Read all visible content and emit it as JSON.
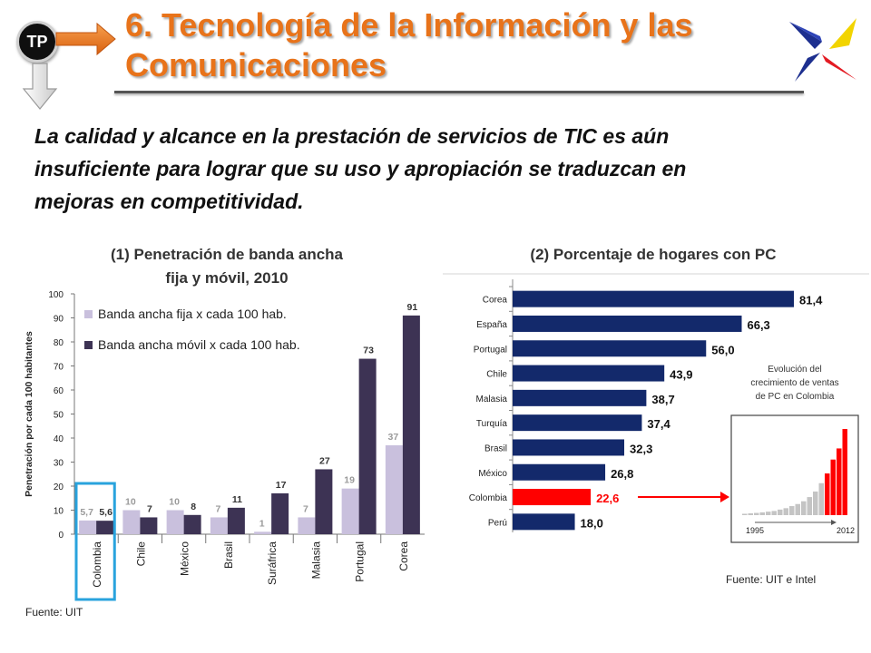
{
  "header": {
    "badge": "TP",
    "title_line1": "6. Tecnología de la Información y las",
    "title_line2": "Comunicaciones"
  },
  "subtitle": {
    "line1": "La calidad y alcance en la prestación de servicios de TIC es aún",
    "line2": "insuficiente para lograr que su uso y apropiación se traduzcan en",
    "line3": "mejoras en competitividad."
  },
  "colors": {
    "title": "#e8731a",
    "fija": "#c9c0dd",
    "movil": "#3d3354",
    "hbar": "#13296b",
    "highlight": "#ff0000",
    "box": "#29a3dd"
  },
  "chart_data": [
    {
      "type": "bar",
      "title_line1": "(1) Penetración de banda ancha",
      "title_line2": "fija y móvil, 2010",
      "ylabel": "Penetración por cada 100 habitantes",
      "ylim": [
        0,
        100
      ],
      "yticks": [
        0,
        10,
        20,
        30,
        40,
        50,
        60,
        70,
        80,
        90,
        100
      ],
      "categories": [
        "Colombia",
        "Chile",
        "México",
        "Brasil",
        "Suráfrica",
        "Malasia",
        "Portugal",
        "Corea"
      ],
      "series": [
        {
          "name": "Banda ancha fija x cada 100 hab.",
          "values": [
            5.7,
            10,
            10,
            7,
            1,
            7,
            19,
            37
          ],
          "labels": [
            "5,7",
            "10",
            "10",
            "7",
            "1",
            "7",
            "19",
            "37"
          ]
        },
        {
          "name": "Banda ancha móvil x cada 100 hab.",
          "values": [
            5.6,
            7,
            8,
            11,
            17,
            27,
            73,
            91
          ],
          "labels": [
            "5,6",
            "7",
            "8",
            "11",
            "17",
            "27",
            "73",
            "91"
          ]
        }
      ],
      "highlight_category": "Colombia",
      "source": "Fuente: UIT"
    },
    {
      "type": "bar",
      "orientation": "horizontal",
      "title": "(2) Porcentaje de hogares con PC",
      "categories": [
        "Corea",
        "España",
        "Portugal",
        "Chile",
        "Malasia",
        "Turquía",
        "Brasil",
        "México",
        "Colombia",
        "Perú"
      ],
      "values": [
        81.4,
        66.3,
        56.0,
        43.9,
        38.7,
        37.4,
        32.3,
        26.8,
        22.6,
        18.0
      ],
      "labels": [
        "81,4",
        "66,3",
        "56,0",
        "43,9",
        "38,7",
        "37,4",
        "32,3",
        "26,8",
        "22,6",
        "18,0"
      ],
      "highlight_category": "Colombia",
      "inset": {
        "type": "bar",
        "title_line1": "Evolución del",
        "title_line2": "crecimiento de ventas",
        "title_line3": "de PC en Colombia",
        "x_start": "1995",
        "x_end": "2012",
        "values": [
          1,
          1.3,
          1.6,
          2,
          2.5,
          3,
          4,
          5,
          6.5,
          8,
          10,
          13,
          17,
          23,
          30,
          40,
          48,
          62
        ],
        "red_from_index": 14
      },
      "source": "Fuente: UIT e Intel"
    }
  ]
}
